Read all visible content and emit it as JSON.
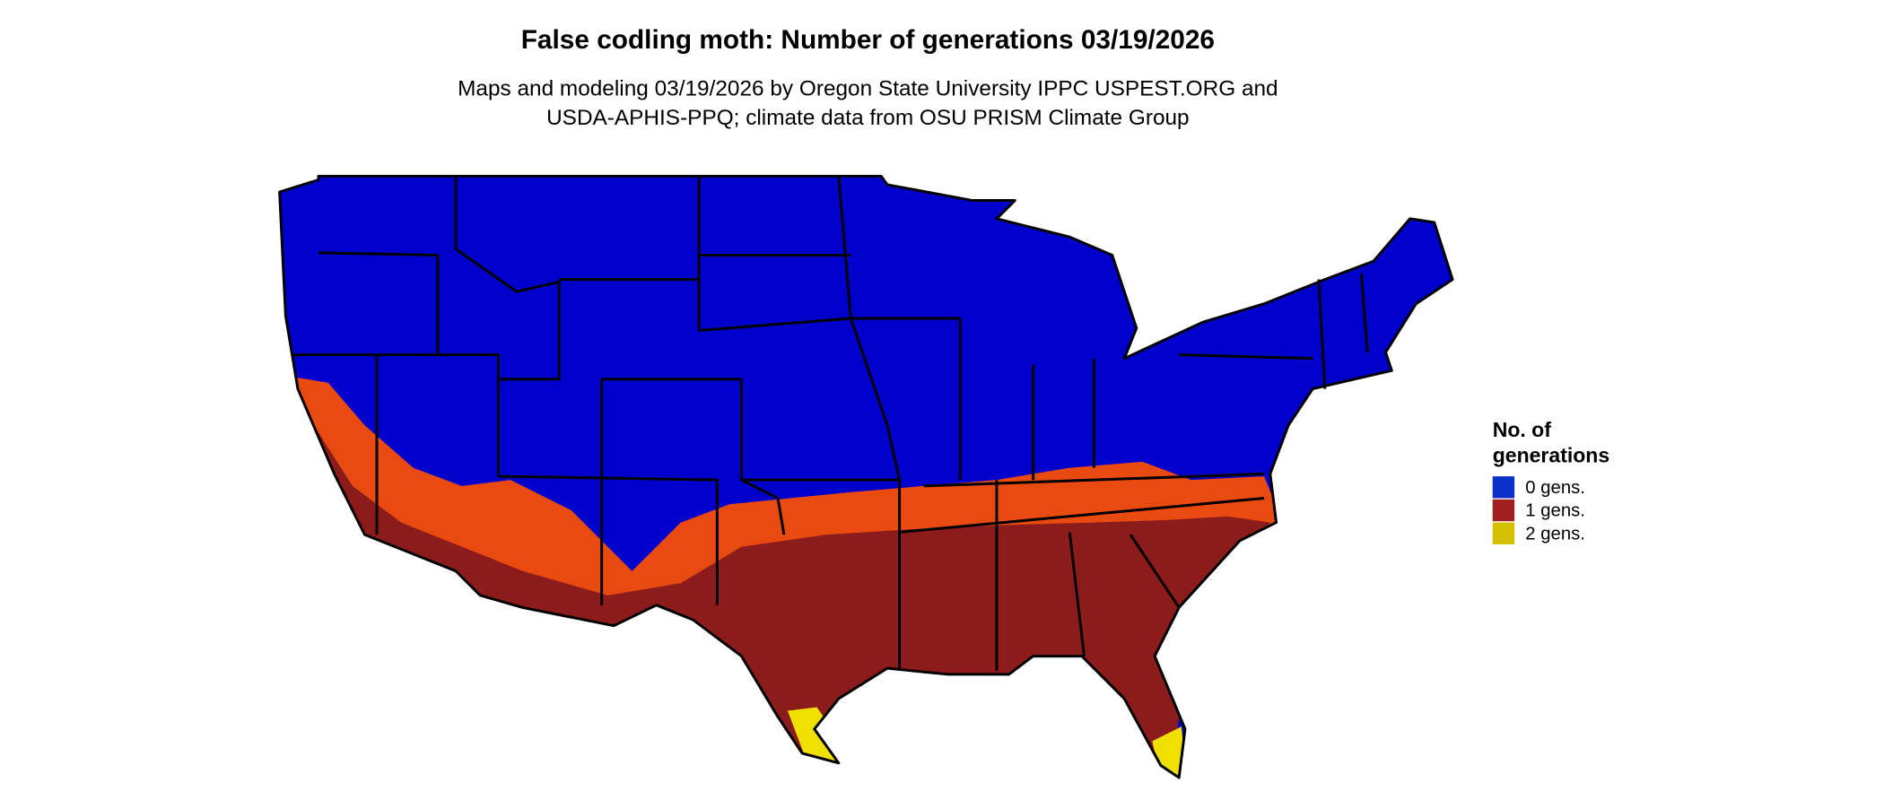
{
  "header": {
    "title": "False codling moth: Number of generations 03/19/2026",
    "subtitle": [
      "Maps and modeling 03/19/2026 by Oregon State University IPPC USPEST.ORG and",
      "USDA-APHIS-PPQ; climate data from OSU PRISM Climate Group"
    ]
  },
  "legend": {
    "title": [
      "No. of",
      "generations"
    ],
    "items": [
      {
        "label": "0 gens.",
        "color": "#0a32c8"
      },
      {
        "label": "1 gens.",
        "color": "#a02020"
      },
      {
        "label": "2 gens.",
        "color": "#d4c000"
      }
    ]
  }
}
